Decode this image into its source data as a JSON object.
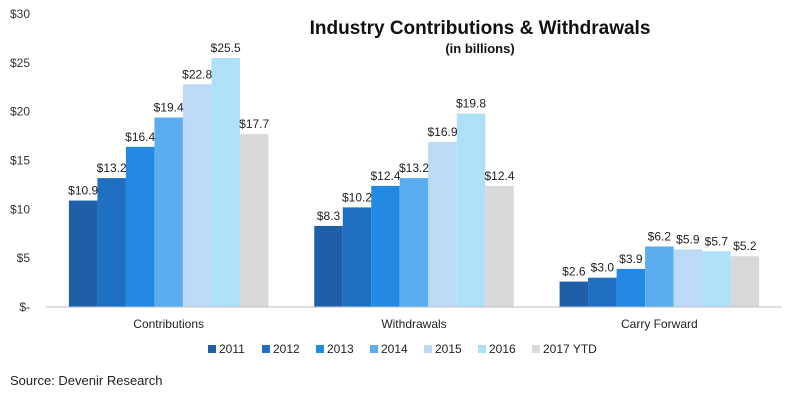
{
  "chart_data": {
    "type": "bar",
    "title": "Industry Contributions & Withdrawals",
    "subtitle": "(in billions)",
    "categories": [
      "Contributions",
      "Withdrawals",
      "Carry Forward"
    ],
    "series": [
      {
        "name": "2011",
        "color": "#1f5fa8",
        "values": [
          10.9,
          8.3,
          2.6
        ],
        "labels": [
          "$10.9",
          "$8.3",
          "$2.6"
        ]
      },
      {
        "name": "2012",
        "color": "#1e6fc2",
        "values": [
          13.2,
          10.2,
          3.0
        ],
        "labels": [
          "$13.2",
          "$10.2",
          "$3.0"
        ]
      },
      {
        "name": "2013",
        "color": "#2389e3",
        "values": [
          16.4,
          12.4,
          3.9
        ],
        "labels": [
          "$16.4",
          "$12.4",
          "$3.9"
        ]
      },
      {
        "name": "2014",
        "color": "#5aaef0",
        "values": [
          19.4,
          13.2,
          6.2
        ],
        "labels": [
          "$19.4",
          "$13.2",
          "$6.2"
        ]
      },
      {
        "name": "2015",
        "color": "#bcd9f5",
        "values": [
          22.8,
          16.9,
          5.9
        ],
        "labels": [
          "$22.8",
          "$16.9",
          "$5.9"
        ]
      },
      {
        "name": "2016",
        "color": "#aee0fa",
        "values": [
          25.5,
          19.8,
          5.7
        ],
        "labels": [
          "$25.5",
          "$19.8",
          "$5.7"
        ]
      },
      {
        "name": "2017 YTD",
        "color": "#d9d9d9",
        "values": [
          17.7,
          12.4,
          5.2
        ],
        "labels": [
          "$17.7",
          "$12.4",
          "$5.2"
        ]
      }
    ],
    "ylim": [
      0,
      30
    ],
    "yticks": [
      0,
      5,
      10,
      15,
      20,
      25,
      30
    ],
    "ytick_labels": [
      "$-",
      "$5",
      "$10",
      "$15",
      "$20",
      "$25",
      "$30"
    ],
    "xlabel": "",
    "ylabel": "",
    "legend_position": "bottom",
    "grid": false
  },
  "source_text": "Source: Devenir Research"
}
